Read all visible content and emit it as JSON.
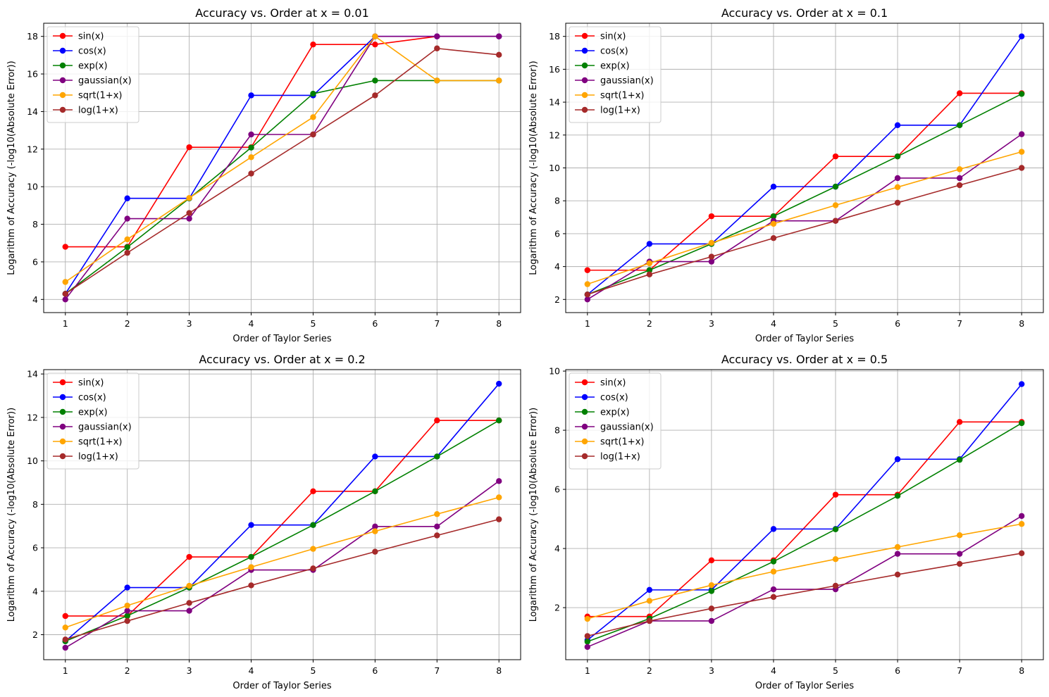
{
  "chart_data": [
    {
      "type": "line",
      "title": "Accuracy vs. Order at x = 0.01",
      "xlabel": "Order of Taylor Series",
      "ylabel": "Logarithm of Accuracy (-log10(Absolute Error))",
      "x": [
        1,
        2,
        3,
        4,
        5,
        6,
        7,
        8
      ],
      "xticks": [
        1,
        2,
        3,
        4,
        5,
        6,
        7,
        8
      ],
      "xlim": [
        0.65,
        8.35
      ],
      "yticks": [
        4,
        6,
        8,
        10,
        12,
        14,
        16,
        18
      ],
      "ylim": [
        3.3,
        18.7
      ],
      "grid": true,
      "legend_position": "top-left",
      "series": [
        {
          "name": "sin(x)",
          "color": "#ff0000",
          "values": [
            6.8,
            6.8,
            12.1,
            12.1,
            17.57,
            17.57,
            18.0,
            18.0
          ]
        },
        {
          "name": "cos(x)",
          "color": "#0000ff",
          "values": [
            4.3,
            9.38,
            9.38,
            14.86,
            14.86,
            18.0,
            18.0,
            18.0
          ]
        },
        {
          "name": "exp(x)",
          "color": "#008000",
          "values": [
            4.3,
            6.78,
            9.38,
            12.08,
            14.95,
            15.65,
            15.65,
            15.65
          ]
        },
        {
          "name": "gaussian(x)",
          "color": "#800080",
          "values": [
            4.0,
            8.3,
            8.3,
            12.78,
            12.78,
            18.0,
            18.0,
            18.0
          ]
        },
        {
          "name": "sqrt(1+x)",
          "color": "#ffa500",
          "values": [
            4.93,
            7.2,
            9.4,
            11.57,
            13.7,
            18.0,
            15.65,
            15.65
          ]
        },
        {
          "name": "log(1+x)",
          "color": "#a52a2a",
          "values": [
            4.3,
            6.48,
            8.6,
            10.7,
            12.78,
            14.86,
            17.36,
            17.02
          ]
        }
      ]
    },
    {
      "type": "line",
      "title": "Accuracy vs. Order at x = 0.1",
      "xlabel": "Order of Taylor Series",
      "ylabel": "Logarithm of Accuracy (-log10(Absolute Error))",
      "x": [
        1,
        2,
        3,
        4,
        5,
        6,
        7,
        8
      ],
      "xticks": [
        1,
        2,
        3,
        4,
        5,
        6,
        7,
        8
      ],
      "xlim": [
        0.65,
        8.35
      ],
      "yticks": [
        2,
        4,
        6,
        8,
        10,
        12,
        14,
        16,
        18
      ],
      "ylim": [
        1.2,
        18.8
      ],
      "grid": true,
      "legend_position": "top-left",
      "series": [
        {
          "name": "sin(x)",
          "color": "#ff0000",
          "values": [
            3.78,
            3.78,
            7.06,
            7.06,
            10.7,
            10.7,
            14.54,
            14.54
          ]
        },
        {
          "name": "cos(x)",
          "color": "#0000ff",
          "values": [
            2.3,
            5.38,
            5.38,
            8.86,
            8.86,
            12.6,
            12.6,
            18.0
          ]
        },
        {
          "name": "exp(x)",
          "color": "#008000",
          "values": [
            2.3,
            3.78,
            5.38,
            7.06,
            8.86,
            10.7,
            12.6,
            14.5
          ]
        },
        {
          "name": "gaussian(x)",
          "color": "#800080",
          "values": [
            2.0,
            4.3,
            4.3,
            6.78,
            6.78,
            9.38,
            9.38,
            12.05
          ]
        },
        {
          "name": "sqrt(1+x)",
          "color": "#ffa500",
          "values": [
            2.93,
            4.2,
            5.44,
            6.6,
            7.73,
            8.83,
            9.92,
            10.98
          ]
        },
        {
          "name": "log(1+x)",
          "color": "#a52a2a",
          "values": [
            2.3,
            3.52,
            4.6,
            5.73,
            6.78,
            7.88,
            8.95,
            10.0
          ]
        }
      ]
    },
    {
      "type": "line",
      "title": "Accuracy vs. Order at x = 0.2",
      "xlabel": "Order of Taylor Series",
      "ylabel": "Logarithm of Accuracy (-log10(Absolute Error))",
      "x": [
        1,
        2,
        3,
        4,
        5,
        6,
        7,
        8
      ],
      "xticks": [
        1,
        2,
        3,
        4,
        5,
        6,
        7,
        8
      ],
      "xlim": [
        0.65,
        8.35
      ],
      "yticks": [
        2,
        4,
        6,
        8,
        10,
        12,
        14
      ],
      "ylim": [
        0.85,
        14.2
      ],
      "grid": true,
      "legend_position": "top-left",
      "series": [
        {
          "name": "sin(x)",
          "color": "#ff0000",
          "values": [
            2.86,
            2.86,
            5.58,
            5.58,
            8.6,
            8.6,
            11.86,
            11.86
          ]
        },
        {
          "name": "cos(x)",
          "color": "#0000ff",
          "values": [
            1.7,
            4.17,
            4.17,
            7.05,
            7.05,
            10.2,
            10.2,
            13.55
          ]
        },
        {
          "name": "exp(x)",
          "color": "#008000",
          "values": [
            1.7,
            2.87,
            4.17,
            5.58,
            7.05,
            8.6,
            10.2,
            11.86
          ]
        },
        {
          "name": "gaussian(x)",
          "color": "#800080",
          "values": [
            1.4,
            3.1,
            3.1,
            4.98,
            4.98,
            6.98,
            6.98,
            9.07
          ]
        },
        {
          "name": "sqrt(1+x)",
          "color": "#ffa500",
          "values": [
            2.33,
            3.34,
            4.25,
            5.11,
            5.95,
            6.76,
            7.55,
            8.32
          ]
        },
        {
          "name": "log(1+x)",
          "color": "#a52a2a",
          "values": [
            1.78,
            2.63,
            3.46,
            4.27,
            5.05,
            5.82,
            6.57,
            7.31
          ]
        }
      ]
    },
    {
      "type": "line",
      "title": "Accuracy vs. Order at x = 0.5",
      "xlabel": "Order of Taylor Series",
      "ylabel": "Logarithm of Accuracy (-log10(Absolute Error))",
      "x": [
        1,
        2,
        3,
        4,
        5,
        6,
        7,
        8
      ],
      "xticks": [
        1,
        2,
        3,
        4,
        5,
        6,
        7,
        8
      ],
      "xlim": [
        0.65,
        8.35
      ],
      "yticks": [
        2,
        4,
        6,
        8,
        10
      ],
      "ylim": [
        0.24,
        10.05
      ],
      "grid": true,
      "legend_position": "top-left",
      "series": [
        {
          "name": "sin(x)",
          "color": "#ff0000",
          "values": [
            1.7,
            1.7,
            3.6,
            3.6,
            5.82,
            5.82,
            8.28,
            8.28
          ]
        },
        {
          "name": "cos(x)",
          "color": "#0000ff",
          "values": [
            0.9,
            2.6,
            2.6,
            4.66,
            4.66,
            7.02,
            7.02,
            9.56
          ]
        },
        {
          "name": "exp(x)",
          "color": "#008000",
          "values": [
            0.85,
            1.63,
            2.56,
            3.56,
            4.65,
            5.78,
            7.0,
            8.24
          ]
        },
        {
          "name": "gaussian(x)",
          "color": "#800080",
          "values": [
            0.67,
            1.55,
            1.55,
            2.62,
            2.62,
            3.82,
            3.82,
            5.1
          ]
        },
        {
          "name": "sqrt(1+x)",
          "color": "#ffa500",
          "values": [
            1.62,
            2.23,
            2.76,
            3.22,
            3.64,
            4.05,
            4.45,
            4.83
          ]
        },
        {
          "name": "log(1+x)",
          "color": "#a52a2a",
          "values": [
            1.04,
            1.55,
            1.97,
            2.36,
            2.74,
            3.12,
            3.48,
            3.84
          ]
        }
      ]
    }
  ]
}
